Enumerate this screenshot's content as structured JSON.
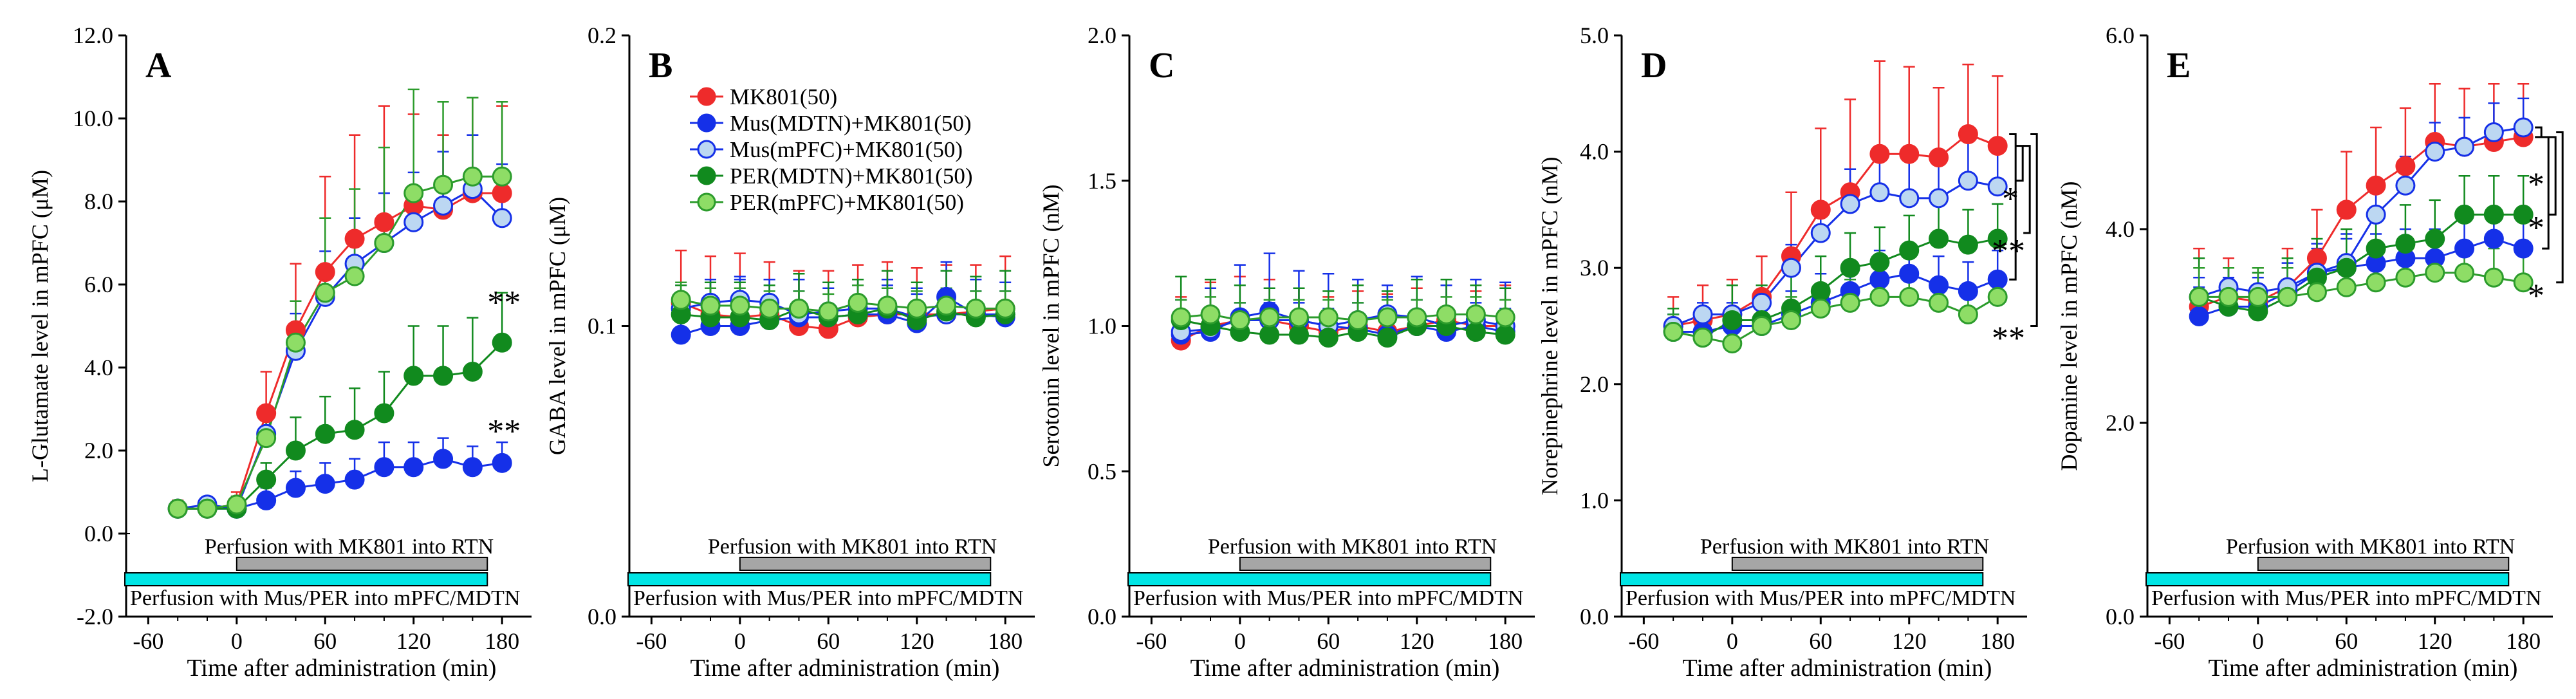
{
  "chart_data": {
    "type": "line",
    "x_label": "Time after administration (min)",
    "x_ticks": [
      -60,
      0,
      60,
      120,
      180
    ],
    "x_tick_labels": [
      "-60",
      "0",
      "60",
      "120",
      "180"
    ],
    "time_points": [
      -40,
      -20,
      0,
      20,
      40,
      60,
      80,
      100,
      120,
      140,
      160,
      180
    ],
    "bar_mk801_label": "Perfusion with MK801 into RTN",
    "bar_mk801_range": [
      0,
      170
    ],
    "bar_mus_label": "Perfusion with Mus/PER into mPFC/MDTN",
    "bar_mus_range": [
      -60,
      170
    ],
    "legend": [
      {
        "key": "mk801",
        "label": "MK801(50)",
        "color": "#ee2b2b",
        "fill": "#ee2b2b"
      },
      {
        "key": "mus_mdtn",
        "label": "Mus(MDTN)+MK801(50)",
        "color": "#1530e8",
        "fill": "#1530e8"
      },
      {
        "key": "mus_mpfc",
        "label": "Mus(mPFC)+MK801(50)",
        "color": "#1530e8",
        "fill": "#bcd7f2"
      },
      {
        "key": "per_mdtn",
        "label": "PER(MDTN)+MK801(50)",
        "color": "#118a1e",
        "fill": "#118a1e"
      },
      {
        "key": "per_mpfc",
        "label": "PER(mPFC)+MK801(50)",
        "color": "#2c9c2c",
        "fill": "#8edd66"
      }
    ],
    "panels": [
      {
        "id": "A",
        "ylabel": "L-Glutamate level in mPFC (μM)",
        "ylim": [
          -2,
          12
        ],
        "yticks": [
          "-2.0",
          "0.0",
          "2.0",
          "4.0",
          "6.0",
          "8.0",
          "10.0",
          "12.0"
        ],
        "series": [
          {
            "key": "mk801",
            "values": [
              0.6,
              0.6,
              0.7,
              2.9,
              4.9,
              6.3,
              7.1,
              7.5,
              7.9,
              7.8,
              8.2,
              8.2
            ],
            "err": [
              0.2,
              0.2,
              0.3,
              1.0,
              1.6,
              2.3,
              2.5,
              2.8,
              2.2,
              1.8,
              2.3,
              2.1
            ]
          },
          {
            "key": "mus_mdtn",
            "values": [
              0.6,
              0.6,
              0.6,
              0.8,
              1.1,
              1.2,
              1.3,
              1.6,
              1.6,
              1.8,
              1.6,
              1.7
            ],
            "err": [
              0.1,
              0.1,
              0.1,
              0.3,
              0.4,
              0.5,
              0.5,
              0.6,
              0.6,
              0.5,
              0.5,
              0.5
            ]
          },
          {
            "key": "mus_mpfc",
            "values": [
              0.6,
              0.7,
              0.6,
              2.4,
              4.4,
              5.7,
              6.5,
              7.0,
              7.5,
              7.9,
              8.3,
              7.6
            ],
            "err": [
              0.1,
              0.1,
              0.1,
              0.4,
              0.9,
              1.1,
              1.1,
              1.2,
              1.2,
              1.3,
              1.3,
              1.3
            ]
          },
          {
            "key": "per_mdtn",
            "values": [
              0.6,
              0.6,
              0.6,
              1.3,
              2.0,
              2.4,
              2.5,
              2.9,
              3.8,
              3.8,
              3.9,
              4.6
            ],
            "err": [
              0.1,
              0.1,
              0.1,
              0.4,
              0.8,
              0.9,
              1.0,
              1.0,
              1.2,
              1.2,
              1.3,
              1.2
            ]
          },
          {
            "key": "per_mpfc",
            "values": [
              0.6,
              0.6,
              0.7,
              2.3,
              4.6,
              5.8,
              6.2,
              7.0,
              8.2,
              8.4,
              8.6,
              8.6
            ],
            "err": [
              0.1,
              0.1,
              0.2,
              0.5,
              1.0,
              1.8,
              2.1,
              2.3,
              2.5,
              2.0,
              1.9,
              1.8
            ]
          }
        ],
        "annotations": [
          {
            "text": "**",
            "x": 170,
            "y": 5.3
          },
          {
            "text": "**",
            "x": 170,
            "y": 2.2
          }
        ],
        "show_legend": false
      },
      {
        "id": "B",
        "ylabel": "GABA level in mPFC (μM)",
        "ylim": [
          0,
          0.2
        ],
        "yticks": [
          "0.0",
          "0.1",
          "0.2"
        ],
        "series": [
          {
            "key": "mk801",
            "values": [
              0.108,
              0.104,
              0.103,
              0.104,
              0.1,
              0.099,
              0.103,
              0.104,
              0.104,
              0.104,
              0.105,
              0.106
            ],
            "err": [
              0.018,
              0.02,
              0.022,
              0.018,
              0.019,
              0.02,
              0.018,
              0.018,
              0.016,
              0.017,
              0.016,
              0.018
            ]
          },
          {
            "key": "mus_mdtn",
            "values": [
              0.097,
              0.1,
              0.1,
              0.102,
              0.103,
              0.103,
              0.104,
              0.104,
              0.101,
              0.11,
              0.104,
              0.103
            ],
            "err": [
              0.013,
              0.015,
              0.016,
              0.014,
              0.013,
              0.012,
              0.012,
              0.012,
              0.012,
              0.012,
              0.012,
              0.012
            ]
          },
          {
            "key": "mus_mpfc",
            "values": [
              0.106,
              0.108,
              0.109,
              0.108,
              0.104,
              0.105,
              0.106,
              0.106,
              0.103,
              0.104,
              0.104,
              0.104
            ],
            "err": [
              0.008,
              0.008,
              0.008,
              0.008,
              0.008,
              0.008,
              0.008,
              0.008,
              0.008,
              0.008,
              0.008,
              0.008
            ]
          },
          {
            "key": "per_mdtn",
            "values": [
              0.104,
              0.103,
              0.103,
              0.102,
              0.106,
              0.103,
              0.104,
              0.106,
              0.102,
              0.105,
              0.103,
              0.104
            ],
            "err": [
              0.01,
              0.012,
              0.012,
              0.012,
              0.012,
              0.012,
              0.012,
              0.013,
              0.013,
              0.014,
              0.014,
              0.015
            ]
          },
          {
            "key": "per_mpfc",
            "values": [
              0.109,
              0.107,
              0.107,
              0.106,
              0.106,
              0.105,
              0.108,
              0.107,
              0.106,
              0.107,
              0.106,
              0.106
            ],
            "err": [
              0.006,
              0.006,
              0.006,
              0.006,
              0.006,
              0.006,
              0.006,
              0.006,
              0.006,
              0.006,
              0.006,
              0.006
            ]
          }
        ],
        "annotations": [],
        "show_legend": true
      },
      {
        "id": "C",
        "ylabel": "Serotonin level in mPFC (nM)",
        "ylim": [
          0,
          2
        ],
        "yticks": [
          "0.0",
          "0.5",
          "1.0",
          "1.5",
          "2.0"
        ],
        "series": [
          {
            "key": "mk801",
            "values": [
              0.95,
              1.0,
              1.02,
              1.02,
              1.0,
              0.98,
              1.0,
              0.98,
              1.0,
              1.02,
              1.0,
              1.0
            ],
            "err": [
              0.15,
              0.15,
              0.15,
              0.14,
              0.13,
              0.12,
              0.12,
              0.13,
              0.13,
              0.12,
              0.12,
              0.14
            ]
          },
          {
            "key": "mus_mdtn",
            "values": [
              0.97,
              0.98,
              1.03,
              1.05,
              1.02,
              1.0,
              0.99,
              0.97,
              1.0,
              0.98,
              1.0,
              0.98
            ],
            "err": [
              0.12,
              0.15,
              0.18,
              0.2,
              0.17,
              0.18,
              0.17,
              0.17,
              0.17,
              0.16,
              0.16,
              0.17
            ]
          },
          {
            "key": "mus_mpfc",
            "values": [
              0.98,
              0.99,
              1.02,
              1.02,
              1.02,
              1.0,
              1.02,
              1.04,
              1.03,
              1.0,
              1.02,
              1.0
            ],
            "err": [
              0.06,
              0.06,
              0.06,
              0.06,
              0.06,
              0.06,
              0.06,
              0.06,
              0.06,
              0.06,
              0.06,
              0.06
            ]
          },
          {
            "key": "per_mdtn",
            "values": [
              1.02,
              1.0,
              0.98,
              0.97,
              0.97,
              0.96,
              0.98,
              0.96,
              1.0,
              1.0,
              0.98,
              0.97
            ],
            "err": [
              0.15,
              0.16,
              0.16,
              0.16,
              0.16,
              0.16,
              0.16,
              0.16,
              0.16,
              0.16,
              0.16,
              0.16
            ]
          },
          {
            "key": "per_mpfc",
            "values": [
              1.03,
              1.04,
              1.02,
              1.03,
              1.03,
              1.03,
              1.02,
              1.03,
              1.03,
              1.04,
              1.04,
              1.03
            ],
            "err": [
              0.06,
              0.06,
              0.06,
              0.06,
              0.06,
              0.06,
              0.06,
              0.06,
              0.06,
              0.06,
              0.06,
              0.06
            ]
          }
        ],
        "annotations": [],
        "show_legend": false
      },
      {
        "id": "D",
        "ylabel": "Norepinephrine level in mPFC (nM)",
        "ylim": [
          0,
          5
        ],
        "yticks": [
          "0.0",
          "1.0",
          "2.0",
          "3.0",
          "4.0",
          "5.0"
        ],
        "series": [
          {
            "key": "mk801",
            "values": [
              2.5,
              2.55,
              2.6,
              2.75,
              3.1,
              3.5,
              3.65,
              3.98,
              3.98,
              3.95,
              4.15,
              4.05
            ],
            "err": [
              0.25,
              0.3,
              0.3,
              0.35,
              0.55,
              0.7,
              0.8,
              0.8,
              0.75,
              0.6,
              0.6,
              0.6
            ]
          },
          {
            "key": "mus_mdtn",
            "values": [
              2.45,
              2.45,
              2.5,
              2.5,
              2.6,
              2.7,
              2.8,
              2.9,
              2.95,
              2.85,
              2.8,
              2.9
            ],
            "err": [
              0.15,
              0.15,
              0.15,
              0.2,
              0.2,
              0.25,
              0.25,
              0.25,
              0.25,
              0.25,
              0.25,
              0.25
            ]
          },
          {
            "key": "mus_mpfc",
            "values": [
              2.5,
              2.6,
              2.6,
              2.7,
              3.0,
              3.3,
              3.55,
              3.65,
              3.6,
              3.6,
              3.75,
              3.7
            ],
            "err": [
              0.1,
              0.1,
              0.1,
              0.15,
              0.2,
              0.25,
              0.3,
              0.35,
              0.35,
              0.35,
              0.35,
              0.35
            ]
          },
          {
            "key": "per_mdtn",
            "values": [
              2.45,
              2.4,
              2.55,
              2.55,
              2.65,
              2.8,
              3.0,
              3.05,
              3.15,
              3.25,
              3.2,
              3.25
            ],
            "err": [
              0.2,
              0.25,
              0.3,
              0.3,
              0.3,
              0.3,
              0.3,
              0.3,
              0.3,
              0.3,
              0.3,
              0.3
            ]
          },
          {
            "key": "per_mpfc",
            "values": [
              2.45,
              2.4,
              2.35,
              2.5,
              2.55,
              2.65,
              2.7,
              2.75,
              2.75,
              2.7,
              2.6,
              2.75
            ],
            "err": [
              0.15,
              0.2,
              0.3,
              0.2,
              0.2,
              0.2,
              0.2,
              0.2,
              0.2,
              0.2,
              0.2,
              0.2
            ]
          }
        ],
        "brackets": [
          {
            "from": 4.15,
            "to": 2.9,
            "level": 0
          },
          {
            "from": 4.05,
            "to": 3.75,
            "level": 1
          },
          {
            "from": 4.05,
            "to": 3.3,
            "level": 2
          },
          {
            "from": 4.15,
            "to": 2.5,
            "level": 3
          }
        ],
        "annotations": [
          {
            "text": "*",
            "x": 183,
            "y": 3.5
          },
          {
            "text": "**",
            "x": 176,
            "y": 3.05
          },
          {
            "text": "**",
            "x": 176,
            "y": 2.3
          }
        ],
        "show_legend": false
      },
      {
        "id": "E",
        "ylabel": "Dopamine level in mPFC (nM)",
        "ylim": [
          0,
          6
        ],
        "yticks": [
          "0.0",
          "2.0",
          "4.0",
          "6.0"
        ],
        "series": [
          {
            "key": "mk801",
            "values": [
              3.2,
              3.3,
              3.25,
              3.4,
              3.7,
              4.2,
              4.45,
              4.65,
              4.9,
              4.85,
              4.9,
              4.95
            ],
            "err": [
              0.6,
              0.4,
              0.35,
              0.4,
              0.5,
              0.6,
              0.6,
              0.6,
              0.6,
              0.6,
              0.6,
              0.55
            ]
          },
          {
            "key": "mus_mdtn",
            "values": [
              3.1,
              3.2,
              3.2,
              3.35,
              3.55,
              3.6,
              3.65,
              3.7,
              3.7,
              3.8,
              3.9,
              3.8
            ],
            "err": [
              0.3,
              0.3,
              0.3,
              0.3,
              0.3,
              0.3,
              0.3,
              0.3,
              0.3,
              0.3,
              0.3,
              0.3
            ]
          },
          {
            "key": "mus_mpfc",
            "values": [
              3.3,
              3.4,
              3.35,
              3.4,
              3.55,
              3.65,
              4.15,
              4.45,
              4.8,
              4.85,
              5.0,
              5.05
            ],
            "err": [
              0.2,
              0.2,
              0.2,
              0.2,
              0.25,
              0.3,
              0.3,
              0.3,
              0.3,
              0.3,
              0.3,
              0.3
            ]
          },
          {
            "key": "per_mdtn",
            "values": [
              3.3,
              3.2,
              3.15,
              3.3,
              3.5,
              3.6,
              3.8,
              3.85,
              3.9,
              4.15,
              4.15,
              4.15
            ],
            "err": [
              0.4,
              0.4,
              0.4,
              0.4,
              0.4,
              0.4,
              0.4,
              0.4,
              0.4,
              0.4,
              0.4,
              0.4
            ]
          },
          {
            "key": "per_mpfc",
            "values": [
              3.3,
              3.3,
              3.3,
              3.3,
              3.35,
              3.4,
              3.45,
              3.5,
              3.55,
              3.55,
              3.5,
              3.45
            ],
            "err": [
              0.3,
              0.3,
              0.3,
              0.3,
              0.3,
              0.3,
              0.3,
              0.3,
              0.3,
              0.3,
              0.3,
              0.4
            ]
          }
        ],
        "brackets": [
          {
            "from": 5.05,
            "to": 4.95,
            "level": 0
          },
          {
            "from": 4.95,
            "to": 3.8,
            "level": 1
          },
          {
            "from": 4.95,
            "to": 4.15,
            "level": 2
          },
          {
            "from": 5.0,
            "to": 3.45,
            "level": 3
          }
        ],
        "annotations": [
          {
            "text": "*",
            "x": 183,
            "y": 4.35
          },
          {
            "text": "*",
            "x": 183,
            "y": 3.9
          },
          {
            "text": "*",
            "x": 183,
            "y": 3.2
          }
        ],
        "show_legend": false
      }
    ]
  }
}
